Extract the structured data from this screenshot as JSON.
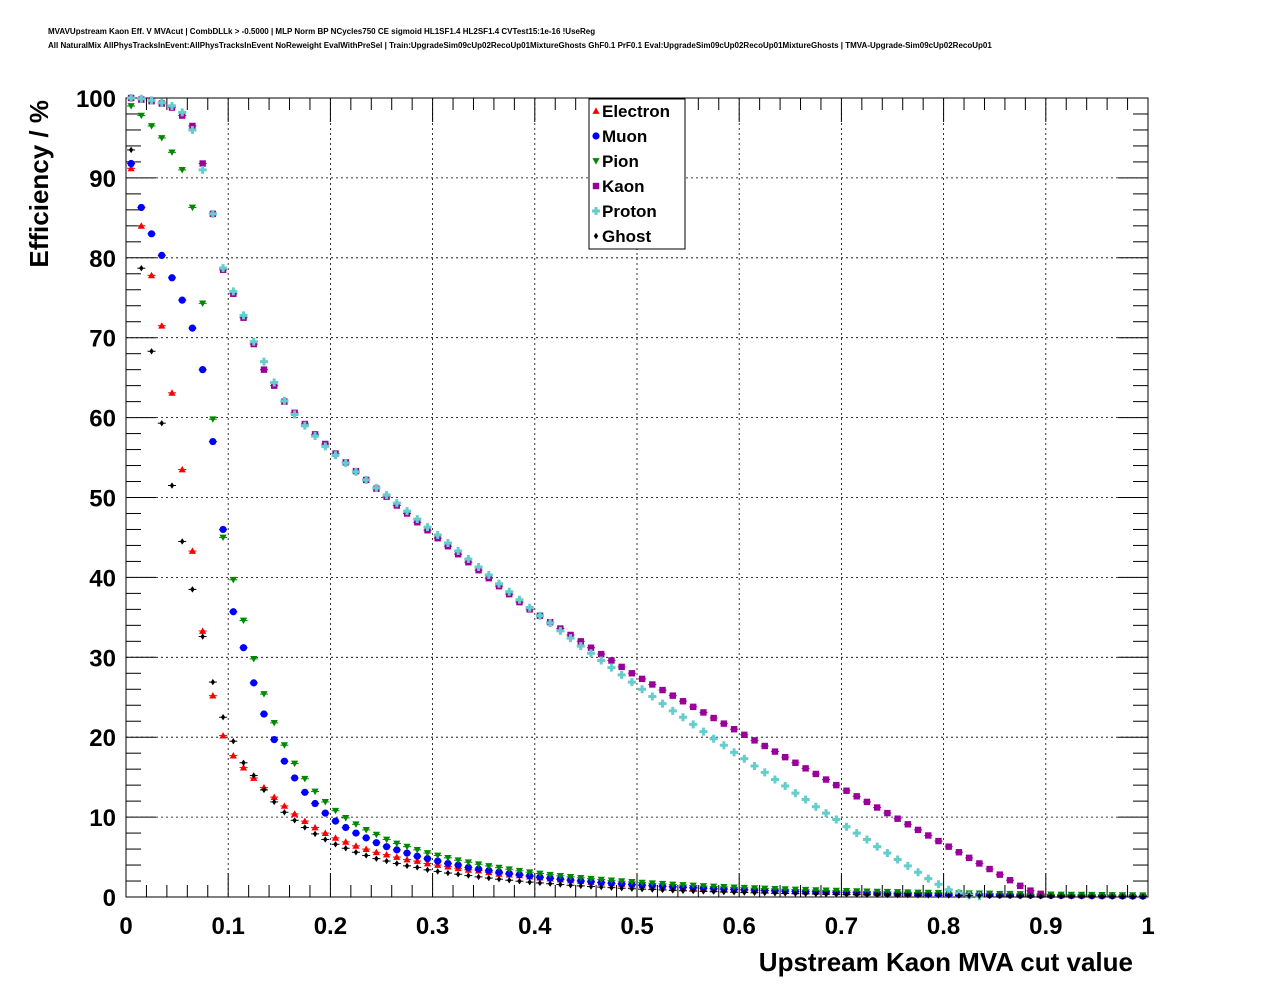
{
  "title_lines": [
    "MVAVUpstream Kaon Eff. V MVAcut | CombDLLk > -0.5000 | MLP Norm BP NCycles750 CE sigmoid HL1SF1.4 HL2SF1.4 CVTest15:1e-16 !UseReg",
    "All NaturalMix AllPhysTracksInEvent:AllPhysTracksInEvent NoReweight EvalWithPreSel | Train:UpgradeSim09cUp02RecoUp01MixtureGhosts GhF0.1 PrF0.1 Eval:UpgradeSim09cUp02RecoUp01MixtureGhosts | TMVA-Upgrade-Sim09cUp02RecoUp01"
  ],
  "chart_data": {
    "type": "scatter",
    "xlabel": "Upstream Kaon MVA cut value",
    "ylabel": "Efficiency / %",
    "xlim": [
      0,
      1
    ],
    "ylim": [
      0,
      100
    ],
    "xticks": [
      "0",
      "0.1",
      "0.2",
      "0.3",
      "0.4",
      "0.5",
      "0.6",
      "0.7",
      "0.8",
      "0.9",
      "1"
    ],
    "yticks": [
      "0",
      "10",
      "20",
      "30",
      "40",
      "50",
      "60",
      "70",
      "80",
      "90",
      "100"
    ],
    "grid": true,
    "legend_position": "top-center",
    "x": [
      0.005,
      0.015,
      0.025,
      0.035,
      0.045,
      0.055,
      0.065,
      0.075,
      0.085,
      0.095,
      0.105,
      0.115,
      0.125,
      0.135,
      0.145,
      0.155,
      0.165,
      0.175,
      0.185,
      0.195,
      0.205,
      0.215,
      0.225,
      0.235,
      0.245,
      0.255,
      0.265,
      0.275,
      0.285,
      0.295,
      0.305,
      0.315,
      0.325,
      0.335,
      0.345,
      0.355,
      0.365,
      0.375,
      0.385,
      0.395,
      0.405,
      0.415,
      0.425,
      0.435,
      0.445,
      0.455,
      0.465,
      0.475,
      0.485,
      0.495,
      0.505,
      0.515,
      0.525,
      0.535,
      0.545,
      0.555,
      0.565,
      0.575,
      0.585,
      0.595,
      0.605,
      0.615,
      0.625,
      0.635,
      0.645,
      0.655,
      0.665,
      0.675,
      0.685,
      0.695,
      0.705,
      0.715,
      0.725,
      0.735,
      0.745,
      0.755,
      0.765,
      0.775,
      0.785,
      0.795,
      0.805,
      0.815,
      0.825,
      0.835,
      0.845,
      0.855,
      0.865,
      0.875,
      0.885,
      0.895,
      0.905,
      0.915,
      0.925,
      0.935,
      0.945,
      0.955,
      0.965,
      0.975,
      0.985,
      0.995
    ],
    "series": [
      {
        "name": "Electron",
        "color": "#ff0000",
        "marker": "triangle-up",
        "values": [
          91.2,
          84.0,
          77.8,
          71.5,
          63.1,
          53.5,
          43.3,
          33.3,
          25.2,
          20.2,
          17.7,
          16.2,
          14.9,
          13.7,
          12.5,
          11.4,
          10.4,
          9.5,
          8.7,
          8.0,
          7.4,
          6.9,
          6.4,
          6.0,
          5.6,
          5.3,
          5.0,
          4.7,
          4.5,
          4.2,
          4.0,
          3.8,
          3.6,
          3.4,
          3.3,
          3.1,
          2.9,
          2.8,
          2.7,
          2.55,
          2.42,
          2.3,
          2.19,
          2.08,
          1.98,
          1.88,
          1.79,
          1.7,
          1.62,
          1.54,
          1.47,
          1.4,
          1.33,
          1.27,
          1.21,
          1.15,
          1.1,
          1.05,
          1.0,
          0.95,
          0.91,
          0.87,
          0.83,
          0.79,
          0.75,
          0.72,
          0.69,
          0.66,
          0.63,
          0.6,
          0.57,
          0.55,
          0.52,
          0.5,
          0.48,
          0.46,
          0.44,
          0.42,
          0.4,
          0.38,
          0.36,
          0.35,
          0.33,
          0.32,
          0.3,
          0.29,
          0.27,
          0.26,
          0.25,
          0.24,
          0.23,
          0.22,
          0.21,
          0.2,
          0.19,
          0.18,
          0.17,
          0.16,
          0.15,
          0.14
        ]
      },
      {
        "name": "Muon",
        "color": "#0000ff",
        "marker": "circle",
        "values": [
          91.8,
          86.3,
          83.0,
          80.3,
          77.5,
          74.7,
          71.2,
          66.0,
          57.0,
          46.0,
          35.7,
          31.2,
          26.8,
          22.9,
          19.7,
          17.0,
          14.9,
          13.1,
          11.7,
          10.5,
          9.5,
          8.7,
          8.0,
          7.4,
          6.8,
          6.3,
          5.9,
          5.5,
          5.1,
          4.8,
          4.5,
          4.2,
          4.0,
          3.7,
          3.5,
          3.3,
          3.1,
          2.95,
          2.8,
          2.65,
          2.5,
          2.37,
          2.25,
          2.13,
          2.02,
          1.92,
          1.82,
          1.73,
          1.65,
          1.57,
          1.49,
          1.42,
          1.35,
          1.28,
          1.22,
          1.16,
          1.1,
          1.05,
          1.0,
          0.95,
          0.9,
          0.86,
          0.82,
          0.78,
          0.74,
          0.7,
          0.67,
          0.64,
          0.61,
          0.58,
          0.55,
          0.52,
          0.5,
          0.47,
          0.45,
          0.43,
          0.41,
          0.39,
          0.37,
          0.35,
          0.33,
          0.32,
          0.3,
          0.29,
          0.27,
          0.26,
          0.25,
          0.23,
          0.22,
          0.21,
          0.2,
          0.19,
          0.18,
          0.17,
          0.16,
          0.15,
          0.14,
          0.13,
          0.12,
          0.11
        ]
      },
      {
        "name": "Pion",
        "color": "#008800",
        "marker": "triangle-down",
        "values": [
          99.0,
          97.8,
          96.5,
          95.0,
          93.2,
          91.0,
          86.3,
          74.3,
          59.8,
          45.0,
          39.7,
          34.6,
          29.8,
          25.4,
          21.8,
          19.0,
          16.7,
          14.8,
          13.2,
          11.9,
          10.8,
          9.9,
          9.1,
          8.4,
          7.8,
          7.2,
          6.7,
          6.3,
          5.9,
          5.5,
          5.2,
          4.9,
          4.6,
          4.35,
          4.1,
          3.88,
          3.67,
          3.47,
          3.28,
          3.1,
          2.94,
          2.79,
          2.65,
          2.52,
          2.4,
          2.29,
          2.18,
          2.08,
          1.98,
          1.89,
          1.8,
          1.72,
          1.65,
          1.57,
          1.5,
          1.44,
          1.38,
          1.32,
          1.26,
          1.21,
          1.16,
          1.11,
          1.06,
          1.02,
          0.98,
          0.94,
          0.9,
          0.86,
          0.83,
          0.79,
          0.76,
          0.73,
          0.7,
          0.67,
          0.65,
          0.62,
          0.6,
          0.57,
          0.55,
          0.53,
          0.51,
          0.49,
          0.47,
          0.45,
          0.43,
          0.41,
          0.4,
          0.38,
          0.36,
          0.35,
          0.33,
          0.32,
          0.3,
          0.29,
          0.28,
          0.26,
          0.25,
          0.24,
          0.23,
          0.22
        ]
      },
      {
        "name": "Kaon",
        "color": "#990099",
        "marker": "square",
        "values": [
          100.0,
          99.8,
          99.6,
          99.3,
          98.8,
          97.8,
          96.5,
          91.8,
          85.5,
          78.5,
          75.5,
          72.5,
          69.2,
          66.0,
          64.0,
          62.0,
          60.6,
          59.2,
          57.9,
          56.7,
          55.5,
          54.4,
          53.3,
          52.2,
          51.1,
          50.1,
          49.0,
          48.0,
          46.9,
          45.9,
          44.9,
          43.9,
          42.9,
          41.9,
          40.9,
          39.9,
          38.9,
          37.9,
          36.9,
          36.0,
          35.2,
          34.4,
          33.6,
          32.8,
          32.0,
          31.2,
          30.4,
          29.6,
          28.8,
          28.0,
          27.3,
          26.6,
          25.9,
          25.2,
          24.5,
          23.8,
          23.1,
          22.4,
          21.7,
          21.0,
          20.3,
          19.6,
          18.9,
          18.2,
          17.5,
          16.8,
          16.1,
          15.4,
          14.7,
          14.0,
          13.3,
          12.6,
          11.9,
          11.2,
          10.5,
          9.8,
          9.1,
          8.4,
          7.7,
          7.0,
          6.3,
          5.6,
          4.9,
          4.2,
          3.5,
          2.8,
          2.1,
          1.4,
          0.8,
          0.4
        ]
      },
      {
        "name": "Proton",
        "color": "#66cccc",
        "marker": "cross",
        "values": [
          100.0,
          99.9,
          99.7,
          99.4,
          99.0,
          98.2,
          96.0,
          91.0,
          85.5,
          78.7,
          75.8,
          72.8,
          69.5,
          67.0,
          64.4,
          62.1,
          60.4,
          59.0,
          57.7,
          56.4,
          55.3,
          54.3,
          53.2,
          52.2,
          51.2,
          50.3,
          49.3,
          48.3,
          47.3,
          46.3,
          45.3,
          44.3,
          43.3,
          42.3,
          41.3,
          40.3,
          39.2,
          38.2,
          37.2,
          36.2,
          35.2,
          34.3,
          33.3,
          32.4,
          31.4,
          30.5,
          29.6,
          28.7,
          27.8,
          26.9,
          26.0,
          25.1,
          24.2,
          23.3,
          22.5,
          21.6,
          20.7,
          19.8,
          19.0,
          18.1,
          17.3,
          16.4,
          15.6,
          14.7,
          13.9,
          13.0,
          12.2,
          11.3,
          10.5,
          9.7,
          8.8,
          8.0,
          7.2,
          6.3,
          5.5,
          4.7,
          3.9,
          3.1,
          2.3,
          1.6,
          0.9,
          0.5,
          0.2,
          0.1
        ]
      },
      {
        "name": "Ghost",
        "color": "#000000",
        "marker": "diamond",
        "values": [
          93.5,
          78.7,
          68.3,
          59.3,
          51.5,
          44.5,
          38.5,
          32.6,
          26.9,
          22.5,
          19.5,
          16.8,
          15.2,
          13.4,
          11.9,
          10.6,
          9.6,
          8.7,
          7.9,
          7.2,
          6.6,
          6.1,
          5.6,
          5.2,
          4.8,
          4.5,
          4.2,
          3.9,
          3.7,
          3.4,
          3.2,
          3.0,
          2.85,
          2.68,
          2.52,
          2.37,
          2.23,
          2.1,
          1.98,
          1.86,
          1.76,
          1.66,
          1.56,
          1.47,
          1.39,
          1.31,
          1.24,
          1.17,
          1.1,
          1.04,
          0.98,
          0.93,
          0.88,
          0.83,
          0.78,
          0.74,
          0.7,
          0.66,
          0.62,
          0.59,
          0.56,
          0.53,
          0.5,
          0.47,
          0.44,
          0.42,
          0.4,
          0.38,
          0.36,
          0.34,
          0.32,
          0.3,
          0.28,
          0.27,
          0.25,
          0.24,
          0.23,
          0.21,
          0.2,
          0.19,
          0.18,
          0.17,
          0.16,
          0.15,
          0.14,
          0.13,
          0.12,
          0.11,
          0.1,
          0.09,
          0.09,
          0.08,
          0.07,
          0.07,
          0.06,
          0.06,
          0.05,
          0.05,
          0.04,
          0.04
        ]
      }
    ]
  }
}
